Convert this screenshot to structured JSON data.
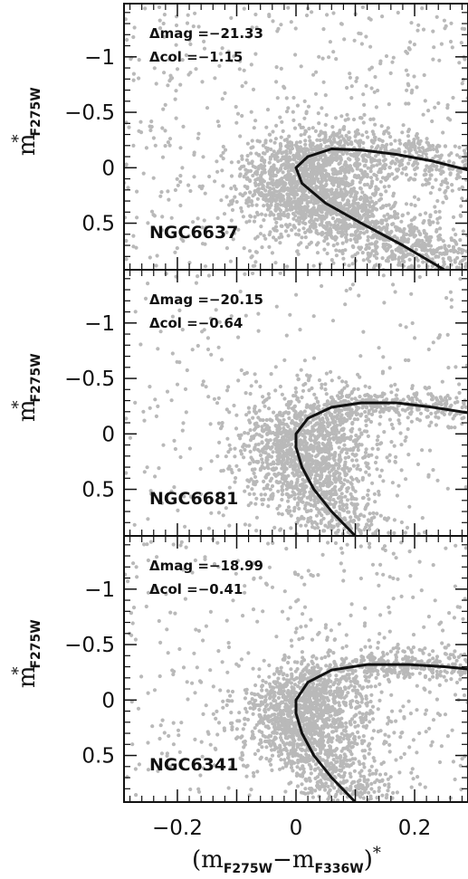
{
  "chart_data": [
    {
      "type": "scatter",
      "cluster": "NGC6637",
      "annotation": {
        "dmag": "Δmag =−21.33",
        "dcol": "Δcol =−1.15"
      },
      "xlim": [
        -0.29,
        0.29
      ],
      "ylim": [
        0.92,
        -1.48
      ],
      "yticks": [
        -1,
        -0.5,
        0,
        0.5
      ],
      "ytick_labels": [
        "−1",
        "−0.5",
        "0",
        "0.5"
      ],
      "grid": false,
      "scatter_color": "#b9b9b9",
      "line_color": "#111111",
      "fiducial": [
        {
          "x": 0.25,
          "y": 0.92
        },
        {
          "x": 0.18,
          "y": 0.7
        },
        {
          "x": 0.11,
          "y": 0.5
        },
        {
          "x": 0.05,
          "y": 0.32
        },
        {
          "x": 0.01,
          "y": 0.14
        },
        {
          "x": 0.0,
          "y": 0.0
        },
        {
          "x": 0.02,
          "y": -0.1
        },
        {
          "x": 0.06,
          "y": -0.17
        },
        {
          "x": 0.11,
          "y": -0.16
        },
        {
          "x": 0.17,
          "y": -0.12
        },
        {
          "x": 0.23,
          "y": -0.06
        },
        {
          "x": 0.29,
          "y": 0.02
        }
      ],
      "cloud": {
        "density": 2.2,
        "spread": 0.07,
        "field": 520,
        "seed": 11
      }
    },
    {
      "type": "scatter",
      "cluster": "NGC6681",
      "annotation": {
        "dmag": "Δmag =−20.15",
        "dcol": "Δcol =−0.64"
      },
      "xlim": [
        -0.29,
        0.29
      ],
      "ylim": [
        0.92,
        -1.48
      ],
      "yticks": [
        -1,
        -0.5,
        0,
        0.5
      ],
      "ytick_labels": [
        "−1",
        "−0.5",
        "0",
        "0.5"
      ],
      "grid": false,
      "scatter_color": "#b9b9b9",
      "line_color": "#111111",
      "fiducial": [
        {
          "x": 0.1,
          "y": 0.92
        },
        {
          "x": 0.06,
          "y": 0.7
        },
        {
          "x": 0.03,
          "y": 0.5
        },
        {
          "x": 0.01,
          "y": 0.3
        },
        {
          "x": 0.0,
          "y": 0.12
        },
        {
          "x": 0.0,
          "y": 0.0
        },
        {
          "x": 0.02,
          "y": -0.14
        },
        {
          "x": 0.06,
          "y": -0.24
        },
        {
          "x": 0.11,
          "y": -0.28
        },
        {
          "x": 0.17,
          "y": -0.28
        },
        {
          "x": 0.23,
          "y": -0.24
        },
        {
          "x": 0.29,
          "y": -0.19
        }
      ],
      "cloud": {
        "density": 1.7,
        "spread": 0.05,
        "field": 260,
        "seed": 23
      }
    },
    {
      "type": "scatter",
      "cluster": "NGC6341",
      "annotation": {
        "dmag": "Δmag =−18.99",
        "dcol": "Δcol =−0.41"
      },
      "xlim": [
        -0.29,
        0.29
      ],
      "ylim": [
        0.92,
        -1.48
      ],
      "yticks": [
        -1,
        -0.5,
        0,
        0.5
      ],
      "ytick_labels": [
        "−1",
        "−0.5",
        "0",
        "0.5"
      ],
      "xticks": [
        -0.2,
        0,
        0.2
      ],
      "xtick_labels": [
        "−0.2",
        "0",
        "0.2"
      ],
      "grid": false,
      "scatter_color": "#b9b9b9",
      "line_color": "#111111",
      "fiducial": [
        {
          "x": 0.1,
          "y": 0.92
        },
        {
          "x": 0.06,
          "y": 0.7
        },
        {
          "x": 0.03,
          "y": 0.5
        },
        {
          "x": 0.01,
          "y": 0.3
        },
        {
          "x": 0.0,
          "y": 0.12
        },
        {
          "x": 0.0,
          "y": 0.0
        },
        {
          "x": 0.02,
          "y": -0.16
        },
        {
          "x": 0.06,
          "y": -0.27
        },
        {
          "x": 0.12,
          "y": -0.32
        },
        {
          "x": 0.19,
          "y": -0.32
        },
        {
          "x": 0.25,
          "y": -0.3
        },
        {
          "x": 0.29,
          "y": -0.28
        }
      ],
      "cloud": {
        "density": 1.8,
        "spread": 0.045,
        "field": 380,
        "seed": 37
      }
    }
  ],
  "ylabel": {
    "main": "m",
    "sup": "*",
    "sub": "F275W"
  },
  "xlabel": {
    "open": "(m",
    "sub1": "F275W",
    "minus": "−m",
    "sub2": "F336W",
    "close": ")",
    "sup": "*"
  }
}
